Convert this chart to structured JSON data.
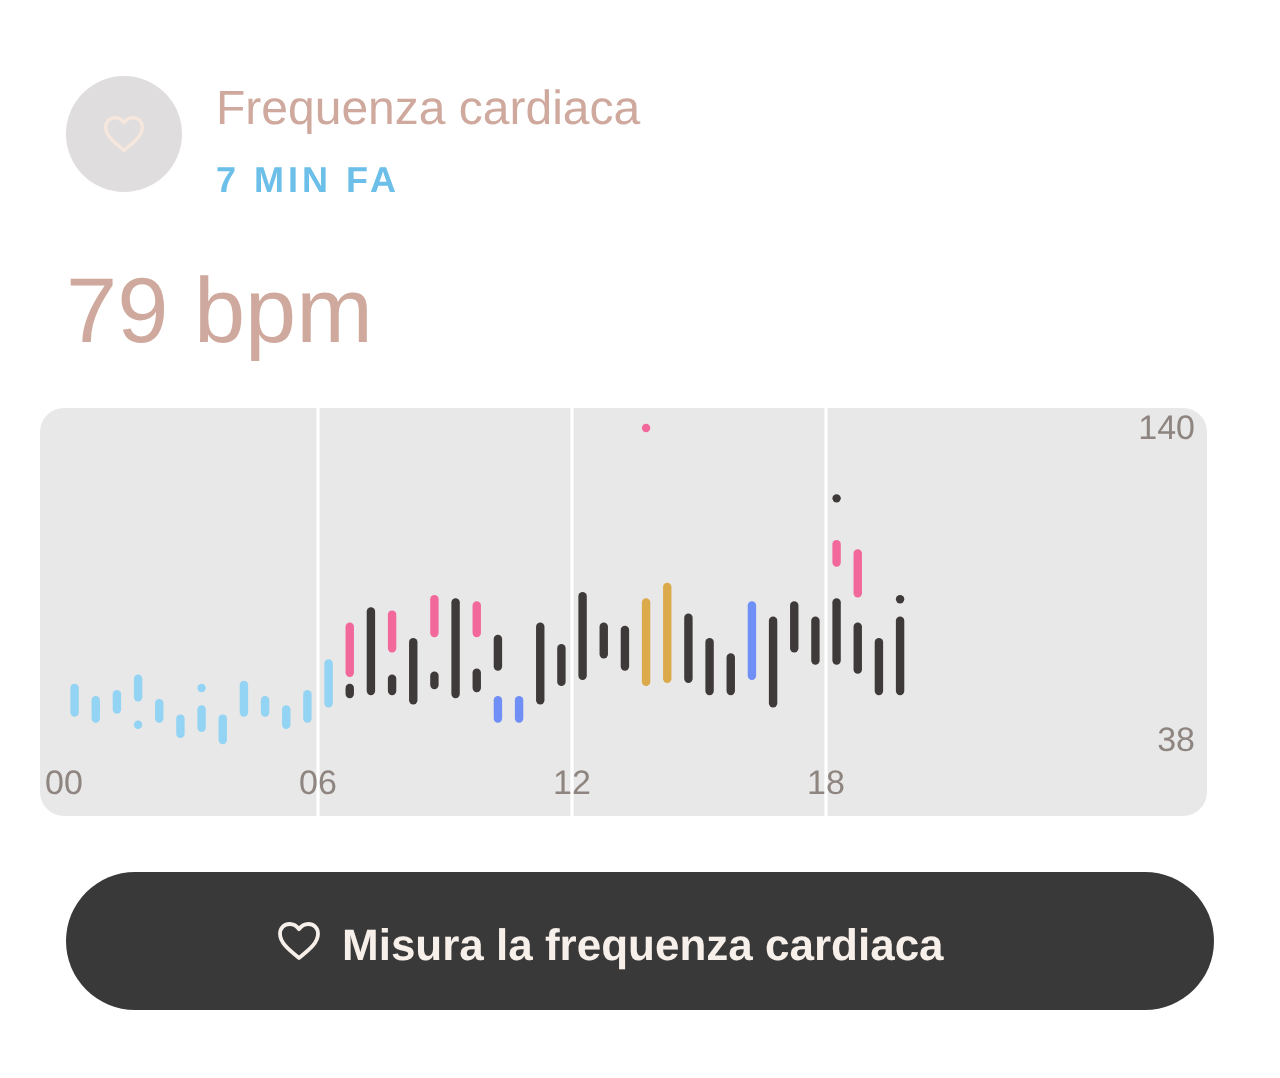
{
  "chart_data": {
    "type": "bar",
    "title": "Frequenza cardiaca",
    "subtitle": "7 MIN FA",
    "annotations": [
      "79 bpm",
      "Misura la frequenza cardiaca"
    ],
    "xlim": [
      0,
      27
    ],
    "xticks": [
      {
        "value": 0,
        "label": "00"
      },
      {
        "value": 6,
        "label": "06"
      },
      {
        "value": 12,
        "label": "12"
      },
      {
        "value": 18,
        "label": "18"
      }
    ],
    "ylim": [
      38,
      140
    ],
    "yticks": [
      38,
      140
    ],
    "grid": "x",
    "series": [
      {
        "color": "#93d3f3",
        "x": [
          0.25,
          0.75,
          1.25,
          1.75,
          2.25,
          2.75,
          3.25,
          3.75,
          4.25,
          4.75,
          5.25,
          5.75,
          6.25
        ],
        "base": [
          47,
          45,
          48,
          52,
          45,
          40,
          42,
          38,
          47,
          47,
          43,
          45,
          50
        ],
        "values": [
          8,
          6,
          5,
          6,
          5,
          5,
          6,
          7,
          9,
          4,
          5,
          8,
          13
        ]
      },
      {
        "color": "#93d3f3",
        "x": [
          1.75,
          3.25
        ],
        "base": [
          43,
          55
        ],
        "values": [
          0,
          0
        ]
      },
      {
        "color": "#3e3a39",
        "x": [
          6.75,
          7.25,
          7.75,
          8.25,
          8.75,
          9.25,
          9.75,
          10.25,
          11.25,
          11.75,
          12.25,
          12.75,
          13.25,
          14.75,
          15.25,
          15.75,
          16.75,
          17.25,
          17.75,
          18.25,
          18.75,
          19.25,
          19.75
        ],
        "base": [
          53,
          54,
          54,
          51,
          56,
          53,
          55,
          62,
          51,
          57,
          59,
          66,
          62,
          58,
          54,
          54,
          50,
          68,
          64,
          64,
          61,
          54,
          54
        ],
        "values": [
          2,
          26,
          4,
          19,
          3,
          30,
          5,
          9,
          24,
          11,
          26,
          9,
          12,
          20,
          16,
          11,
          27,
          14,
          13,
          19,
          14,
          16,
          23
        ]
      },
      {
        "color": "#3e3a39",
        "x": [
          18.25,
          19.75
        ],
        "base": [
          117,
          84
        ],
        "values": [
          0,
          0
        ]
      },
      {
        "color": "#f2689b",
        "x": [
          6.75,
          7.75,
          8.75,
          9.75,
          13.75,
          18.25,
          18.75
        ],
        "base": [
          60,
          68,
          73,
          73,
          140,
          96,
          86
        ],
        "values": [
          15,
          11,
          11,
          9,
          0,
          6,
          13
        ]
      },
      {
        "color": "#6f8ff6",
        "x": [
          10.25,
          10.75,
          16.25
        ],
        "base": [
          45,
          45,
          59
        ],
        "values": [
          6,
          6,
          23
        ]
      },
      {
        "color": "#dcaa4a",
        "x": [
          13.75,
          14.25
        ],
        "base": [
          57,
          58
        ],
        "values": [
          26,
          30
        ]
      }
    ]
  }
}
